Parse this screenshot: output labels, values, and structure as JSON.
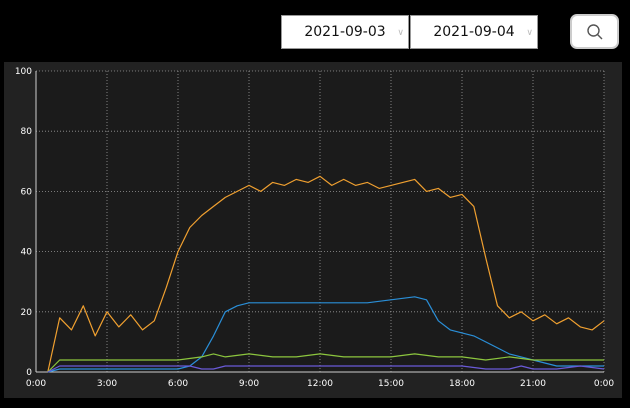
{
  "toolbar": {
    "date_from": "2021-09-03",
    "date_to": "2021-09-04",
    "separator": "~",
    "search_icon": "search-icon"
  },
  "colors": {
    "background": "#000000",
    "plot_background": "#222222",
    "orange": "#f0a030",
    "blue": "#2a8fd8",
    "green": "#8cc63e",
    "purple": "#6a5ad8"
  },
  "chart_data": {
    "type": "line",
    "title": "",
    "xlabel": "",
    "ylabel": "",
    "x_ticks": [
      "0:00",
      "3:00",
      "6:00",
      "9:00",
      "12:00",
      "15:00",
      "18:00",
      "21:00",
      "0:00"
    ],
    "y_ticks": [
      "0",
      "20",
      "40",
      "60",
      "80",
      "100"
    ],
    "xlim": [
      0,
      24
    ],
    "ylim": [
      0,
      100
    ],
    "grid": true,
    "legend": "none",
    "series": [
      {
        "color": "#f0a030",
        "x": [
          0.5,
          1.0,
          1.5,
          2.0,
          2.5,
          3.0,
          3.5,
          4.0,
          4.5,
          5.0,
          5.5,
          6.0,
          6.5,
          7.0,
          7.5,
          8.0,
          8.5,
          9.0,
          9.5,
          10.0,
          10.5,
          11.0,
          11.5,
          12.0,
          12.5,
          13.0,
          13.5,
          14.0,
          14.5,
          15.0,
          15.5,
          16.0,
          16.5,
          17.0,
          17.5,
          18.0,
          18.5,
          19.0,
          19.5,
          20.0,
          20.5,
          21.0,
          21.5,
          22.0,
          22.5,
          23.0,
          23.5,
          24.0
        ],
        "values": [
          0,
          18,
          14,
          22,
          12,
          20,
          15,
          19,
          14,
          17,
          28,
          40,
          48,
          52,
          55,
          58,
          60,
          62,
          60,
          63,
          62,
          64,
          63,
          65,
          62,
          64,
          62,
          63,
          61,
          62,
          63,
          64,
          60,
          61,
          58,
          59,
          55,
          38,
          22,
          18,
          20,
          17,
          19,
          16,
          18,
          15,
          14,
          17
        ]
      },
      {
        "color": "#2a8fd8",
        "x": [
          0.5,
          1.0,
          3.0,
          5.0,
          6.0,
          6.5,
          7.0,
          7.5,
          8.0,
          8.5,
          9.0,
          10.0,
          11.0,
          12.0,
          13.0,
          14.0,
          15.0,
          16.0,
          16.5,
          17.0,
          17.5,
          18.0,
          18.5,
          19.0,
          19.5,
          20.0,
          20.5,
          21.0,
          21.5,
          22.0,
          23.0,
          24.0
        ],
        "values": [
          0,
          1,
          1,
          1,
          1,
          2,
          5,
          12,
          20,
          22,
          23,
          23,
          23,
          23,
          23,
          23,
          24,
          25,
          24,
          17,
          14,
          13,
          12,
          10,
          8,
          6,
          5,
          4,
          3,
          2,
          2,
          2
        ]
      },
      {
        "color": "#8cc63e",
        "x": [
          0.5,
          1.0,
          3.0,
          6.0,
          7.0,
          7.5,
          8.0,
          9.0,
          10.0,
          11.0,
          12.0,
          13.0,
          14.0,
          15.0,
          16.0,
          17.0,
          18.0,
          19.0,
          20.0,
          21.0,
          22.0,
          23.0,
          24.0
        ],
        "values": [
          0,
          4,
          4,
          4,
          5,
          6,
          5,
          6,
          5,
          5,
          6,
          5,
          5,
          5,
          6,
          5,
          5,
          4,
          5,
          4,
          4,
          4,
          4
        ]
      },
      {
        "color": "#6a5ad8",
        "x": [
          0.5,
          1.0,
          2.0,
          3.0,
          4.0,
          5.0,
          6.0,
          6.5,
          7.0,
          7.5,
          8.0,
          9.0,
          10.0,
          11.0,
          12.0,
          13.0,
          14.0,
          15.0,
          16.0,
          17.0,
          18.0,
          19.0,
          20.0,
          20.5,
          21.0,
          22.0,
          23.0,
          24.0
        ],
        "values": [
          0,
          2,
          2,
          2,
          2,
          2,
          2,
          2,
          1,
          1,
          2,
          2,
          2,
          2,
          2,
          2,
          2,
          2,
          2,
          2,
          2,
          1,
          1,
          2,
          1,
          1,
          2,
          1
        ]
      }
    ]
  }
}
